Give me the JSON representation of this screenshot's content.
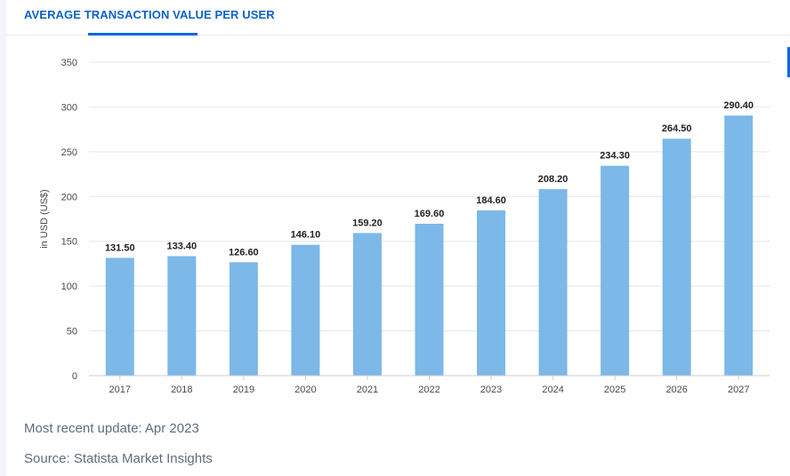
{
  "tab": {
    "title": "AVERAGE TRANSACTION VALUE PER USER"
  },
  "colors": {
    "accent": "#0666e5",
    "bar": "#7cb8e8",
    "title": "#0d61c8",
    "grid": "#e3e7eb"
  },
  "chart_data": {
    "type": "bar",
    "title": "",
    "xlabel": "",
    "ylabel": "in USD (US$)",
    "categories": [
      "2017",
      "2018",
      "2019",
      "2020",
      "2021",
      "2022",
      "2023",
      "2024",
      "2025",
      "2026",
      "2027"
    ],
    "values": [
      131.5,
      133.4,
      126.6,
      146.1,
      159.2,
      169.6,
      184.6,
      208.2,
      234.3,
      264.5,
      290.4
    ],
    "value_labels": [
      "131.50",
      "133.40",
      "126.60",
      "146.10",
      "159.20",
      "169.60",
      "184.60",
      "208.20",
      "234.30",
      "264.50",
      "290.40"
    ],
    "ylim": [
      0,
      350
    ],
    "yticks": [
      0,
      50,
      100,
      150,
      200,
      250,
      300,
      350
    ],
    "grid": true,
    "legend": "none"
  },
  "footer": {
    "update": "Most recent update: Apr 2023",
    "source": "Source: Statista Market Insights"
  }
}
